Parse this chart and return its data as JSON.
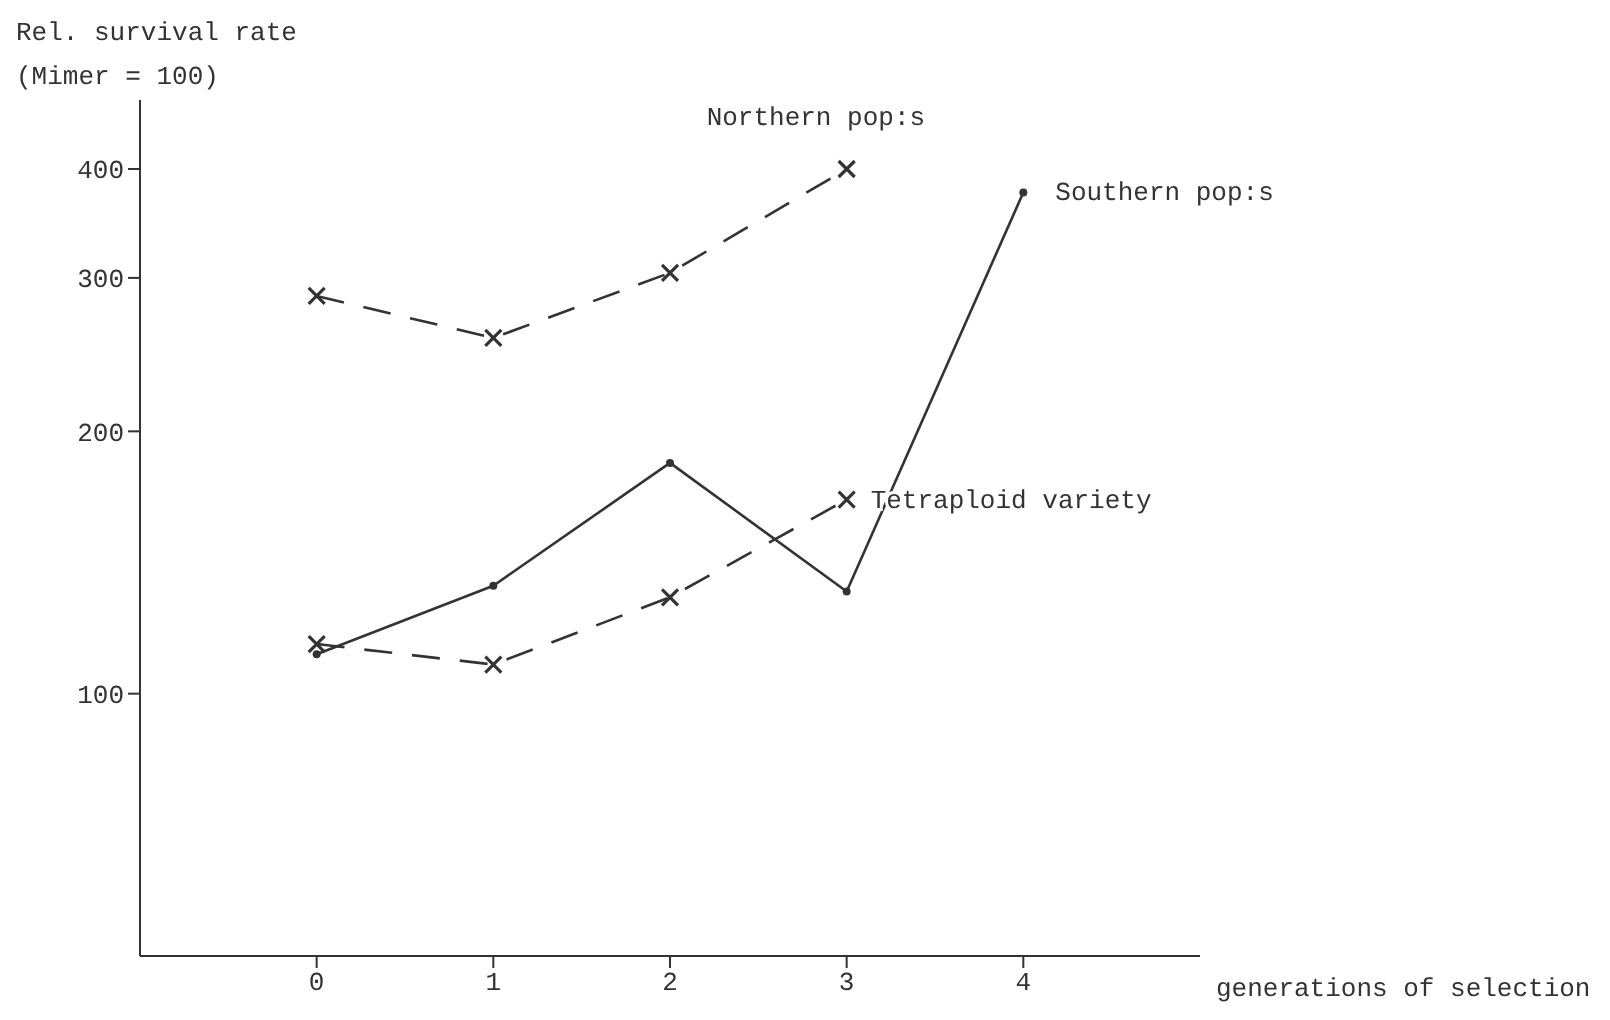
{
  "chart_data": {
    "type": "line",
    "xlabel": "generations of selection",
    "ylabel": "Rel. survival rate\n(Mimer = 100)",
    "x": [
      0,
      1,
      2,
      3,
      4
    ],
    "xlim": [
      -1,
      5
    ],
    "xticks": [
      0,
      1,
      2,
      3,
      4
    ],
    "ylim": [
      50,
      480
    ],
    "yticks": [
      100,
      200,
      300,
      400
    ],
    "log": "y",
    "grid": false,
    "legend": false,
    "series": [
      {
        "name": "Northern pop:s",
        "color": "#333333",
        "values": [
          286,
          256,
          304,
          400,
          null
        ],
        "line_style": "dashed",
        "marker": "cross"
      },
      {
        "name": "Southern pop:s",
        "color": "#333333",
        "values": [
          111,
          133,
          184,
          131,
          376
        ],
        "line_style": "solid",
        "marker": "circle"
      },
      {
        "name": "Tetraploid variety",
        "color": "#333333",
        "values": [
          114,
          108,
          129,
          167,
          null
        ],
        "line_style": "dashed",
        "marker": "cross"
      }
    ]
  }
}
